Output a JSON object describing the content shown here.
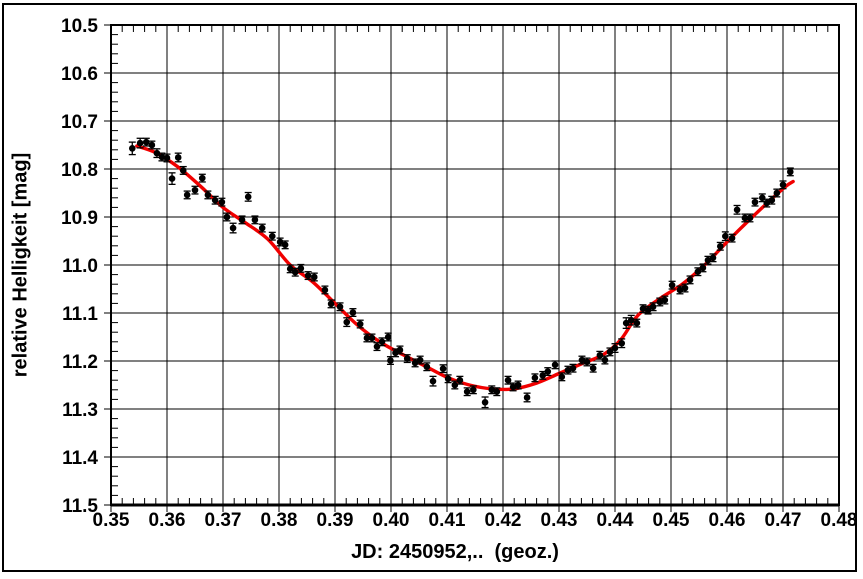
{
  "chart_data": {
    "type": "scatter",
    "title": "",
    "xlabel": "JD: 2450952,..  (geoz.)",
    "ylabel": "relative Helligkeit [mag]",
    "xlim": [
      0.35,
      0.48
    ],
    "ylim": [
      10.5,
      11.5
    ],
    "y_axis_note": "magnitude scale, fainter (larger mag) plotted downward; 10.5 at top, 11.5 at bottom",
    "x_major_step": 0.01,
    "x_minor_step": 0.002,
    "y_major_step": 0.1,
    "y_minor_step": 0.02,
    "grid": "major gridlines both axes, black on white",
    "legend": "none",
    "x_tick_labels": [
      "0.35",
      "0.36",
      "0.37",
      "0.38",
      "0.39",
      "0.40",
      "0.41",
      "0.42",
      "0.43",
      "0.44",
      "0.45",
      "0.46",
      "0.47",
      "0.48"
    ],
    "y_tick_labels": [
      "10.5",
      "10.6",
      "10.7",
      "10.8",
      "10.9",
      "11.0",
      "11.1",
      "11.2",
      "11.3",
      "11.4",
      "11.5"
    ],
    "colors": {
      "points": "#000000",
      "fit_curve": "#f10000",
      "grid": "#000000",
      "frame": "#000000",
      "background": "#ffffff"
    },
    "series": [
      {
        "name": "observations",
        "type": "scatter",
        "marker": "filled-circle",
        "error_bars": true,
        "points_format": [
          "JD_fraction",
          "magnitude",
          "error_mag"
        ],
        "points": [
          [
            0.3538,
            10.757,
            0.013
          ],
          [
            0.3552,
            10.746,
            0.01
          ],
          [
            0.3563,
            10.744,
            0.008
          ],
          [
            0.3573,
            10.75,
            0.008
          ],
          [
            0.3582,
            10.767,
            0.009
          ],
          [
            0.3591,
            10.775,
            0.008
          ],
          [
            0.36,
            10.777,
            0.008
          ],
          [
            0.3609,
            10.82,
            0.012
          ],
          [
            0.362,
            10.776,
            0.009
          ],
          [
            0.3629,
            10.803,
            0.008
          ],
          [
            0.3636,
            10.854,
            0.008
          ],
          [
            0.365,
            10.844,
            0.008
          ],
          [
            0.3663,
            10.819,
            0.008
          ],
          [
            0.3673,
            10.854,
            0.008
          ],
          [
            0.3686,
            10.865,
            0.008
          ],
          [
            0.3698,
            10.869,
            0.008
          ],
          [
            0.3707,
            10.9,
            0.008
          ],
          [
            0.3718,
            10.923,
            0.01
          ],
          [
            0.3734,
            10.906,
            0.008
          ],
          [
            0.3745,
            10.858,
            0.009
          ],
          [
            0.3757,
            10.906,
            0.008
          ],
          [
            0.377,
            10.923,
            0.008
          ],
          [
            0.3788,
            10.94,
            0.008
          ],
          [
            0.3802,
            10.952,
            0.008
          ],
          [
            0.3811,
            10.958,
            0.008
          ],
          [
            0.382,
            11.008,
            0.008
          ],
          [
            0.3829,
            11.015,
            0.008
          ],
          [
            0.3839,
            11.007,
            0.008
          ],
          [
            0.3852,
            11.022,
            0.008
          ],
          [
            0.3863,
            11.025,
            0.008
          ],
          [
            0.3882,
            11.052,
            0.008
          ],
          [
            0.3893,
            11.081,
            0.008
          ],
          [
            0.3909,
            11.087,
            0.008
          ],
          [
            0.3921,
            11.119,
            0.009
          ],
          [
            0.3932,
            11.099,
            0.008
          ],
          [
            0.3945,
            11.123,
            0.008
          ],
          [
            0.3957,
            11.152,
            0.008
          ],
          [
            0.3966,
            11.152,
            0.008
          ],
          [
            0.3975,
            11.17,
            0.008
          ],
          [
            0.3984,
            11.16,
            0.008
          ],
          [
            0.3995,
            11.15,
            0.008
          ],
          [
            0.3999,
            11.199,
            0.008
          ],
          [
            0.4008,
            11.183,
            0.008
          ],
          [
            0.4016,
            11.177,
            0.008
          ],
          [
            0.4029,
            11.195,
            0.008
          ],
          [
            0.4043,
            11.204,
            0.008
          ],
          [
            0.4052,
            11.198,
            0.008
          ],
          [
            0.4064,
            11.212,
            0.008
          ],
          [
            0.4075,
            11.242,
            0.01
          ],
          [
            0.4093,
            11.216,
            0.008
          ],
          [
            0.4102,
            11.237,
            0.008
          ],
          [
            0.4114,
            11.25,
            0.008
          ],
          [
            0.4123,
            11.24,
            0.008
          ],
          [
            0.4136,
            11.264,
            0.008
          ],
          [
            0.4147,
            11.26,
            0.008
          ],
          [
            0.4168,
            11.286,
            0.011
          ],
          [
            0.418,
            11.26,
            0.008
          ],
          [
            0.4189,
            11.264,
            0.008
          ],
          [
            0.4209,
            11.24,
            0.008
          ],
          [
            0.4218,
            11.254,
            0.008
          ],
          [
            0.4227,
            11.25,
            0.008
          ],
          [
            0.4243,
            11.276,
            0.009
          ],
          [
            0.4257,
            11.235,
            0.008
          ],
          [
            0.4271,
            11.23,
            0.008
          ],
          [
            0.428,
            11.222,
            0.008
          ],
          [
            0.4293,
            11.208,
            0.008
          ],
          [
            0.4305,
            11.233,
            0.008
          ],
          [
            0.4316,
            11.219,
            0.008
          ],
          [
            0.4325,
            11.215,
            0.008
          ],
          [
            0.4341,
            11.198,
            0.008
          ],
          [
            0.435,
            11.202,
            0.008
          ],
          [
            0.4361,
            11.215,
            0.008
          ],
          [
            0.4373,
            11.188,
            0.008
          ],
          [
            0.4382,
            11.198,
            0.008
          ],
          [
            0.4391,
            11.181,
            0.008
          ],
          [
            0.44,
            11.173,
            0.009
          ],
          [
            0.4412,
            11.163,
            0.009
          ],
          [
            0.442,
            11.121,
            0.011
          ],
          [
            0.4429,
            11.115,
            0.01
          ],
          [
            0.4439,
            11.121,
            0.008
          ],
          [
            0.445,
            11.091,
            0.008
          ],
          [
            0.4459,
            11.094,
            0.008
          ],
          [
            0.4468,
            11.087,
            0.008
          ],
          [
            0.448,
            11.077,
            0.008
          ],
          [
            0.4489,
            11.073,
            0.008
          ],
          [
            0.4502,
            11.042,
            0.008
          ],
          [
            0.4516,
            11.052,
            0.008
          ],
          [
            0.4525,
            11.048,
            0.008
          ],
          [
            0.4534,
            11.031,
            0.008
          ],
          [
            0.4548,
            11.014,
            0.008
          ],
          [
            0.4557,
            11.006,
            0.008
          ],
          [
            0.4566,
            10.99,
            0.008
          ],
          [
            0.4575,
            10.985,
            0.008
          ],
          [
            0.4588,
            10.961,
            0.008
          ],
          [
            0.4597,
            10.94,
            0.009
          ],
          [
            0.4609,
            10.944,
            0.008
          ],
          [
            0.4618,
            10.885,
            0.009
          ],
          [
            0.4632,
            10.902,
            0.008
          ],
          [
            0.4641,
            10.902,
            0.008
          ],
          [
            0.465,
            10.869,
            0.008
          ],
          [
            0.4663,
            10.86,
            0.008
          ],
          [
            0.4671,
            10.871,
            0.008
          ],
          [
            0.468,
            10.865,
            0.008
          ],
          [
            0.4689,
            10.85,
            0.008
          ],
          [
            0.47,
            10.833,
            0.008
          ],
          [
            0.4713,
            10.806,
            0.008
          ]
        ]
      },
      {
        "name": "fit_curve",
        "type": "line",
        "points_format": [
          "JD_fraction",
          "magnitude"
        ],
        "points": [
          [
            0.3546,
            10.752
          ],
          [
            0.358,
            10.766
          ],
          [
            0.362,
            10.796
          ],
          [
            0.366,
            10.836
          ],
          [
            0.37,
            10.88
          ],
          [
            0.374,
            10.912
          ],
          [
            0.378,
            10.946
          ],
          [
            0.382,
            11.0
          ],
          [
            0.386,
            11.035
          ],
          [
            0.39,
            11.08
          ],
          [
            0.394,
            11.125
          ],
          [
            0.398,
            11.16
          ],
          [
            0.402,
            11.186
          ],
          [
            0.406,
            11.21
          ],
          [
            0.41,
            11.234
          ],
          [
            0.414,
            11.25
          ],
          [
            0.418,
            11.258
          ],
          [
            0.422,
            11.258
          ],
          [
            0.426,
            11.246
          ],
          [
            0.43,
            11.226
          ],
          [
            0.434,
            11.206
          ],
          [
            0.438,
            11.186
          ],
          [
            0.441,
            11.156
          ],
          [
            0.444,
            11.106
          ],
          [
            0.448,
            11.07
          ],
          [
            0.452,
            11.04
          ],
          [
            0.456,
            11.0
          ],
          [
            0.46,
            10.952
          ],
          [
            0.464,
            10.906
          ],
          [
            0.468,
            10.862
          ],
          [
            0.4705,
            10.836
          ],
          [
            0.4718,
            10.826
          ]
        ]
      }
    ]
  }
}
